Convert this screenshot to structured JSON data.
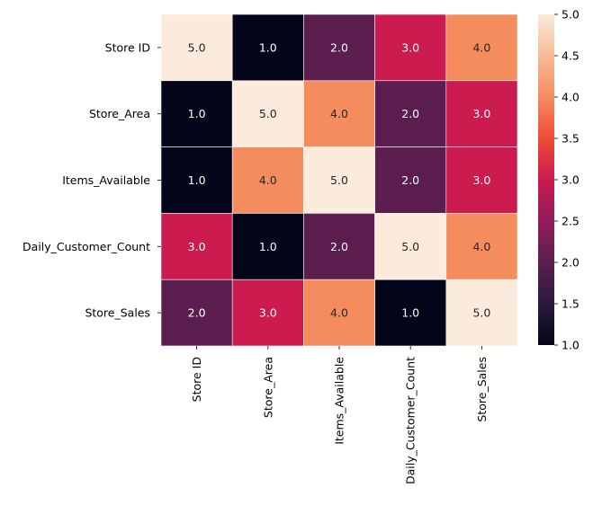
{
  "chart_data": {
    "type": "heatmap",
    "row_labels": [
      "Store ID ",
      "Store_Area",
      "Items_Available",
      "Daily_Customer_Count",
      "Store_Sales"
    ],
    "col_labels": [
      "Store ID ",
      "Store_Area",
      "Items_Available",
      "Daily_Customer_Count",
      "Store_Sales"
    ],
    "values": [
      [
        5.0,
        1.0,
        2.0,
        3.0,
        4.0
      ],
      [
        1.0,
        5.0,
        4.0,
        2.0,
        3.0
      ],
      [
        1.0,
        4.0,
        5.0,
        2.0,
        3.0
      ],
      [
        3.0,
        1.0,
        2.0,
        5.0,
        4.0
      ],
      [
        2.0,
        3.0,
        4.0,
        1.0,
        5.0
      ]
    ],
    "annotations": [
      [
        "5.0",
        "1.0",
        "2.0",
        "3.0",
        "4.0"
      ],
      [
        "1.0",
        "5.0",
        "4.0",
        "2.0",
        "3.0"
      ],
      [
        "1.0",
        "4.0",
        "5.0",
        "2.0",
        "3.0"
      ],
      [
        "3.0",
        "1.0",
        "2.0",
        "5.0",
        "4.0"
      ],
      [
        "2.0",
        "3.0",
        "4.0",
        "1.0",
        "5.0"
      ]
    ],
    "vmin": 1.0,
    "vmax": 5.0,
    "colormap": "rocket",
    "colorbar_ticks": [
      "1.0",
      "1.5",
      "2.0",
      "2.5",
      "3.0",
      "3.5",
      "4.0",
      "4.5",
      "5.0"
    ],
    "cell_colors": {
      "1.0": "#03051a",
      "2.0": "#5c1e4f",
      "3.0": "#cb1b4f",
      "4.0": "#f58c5e",
      "5.0": "#faebdd"
    },
    "colorbar_stops": [
      "#03051a",
      "#2b1a3e",
      "#5c1e4f",
      "#921c5b",
      "#cb1b4f",
      "#ef4c3a",
      "#f58c5e",
      "#f6bb97",
      "#faebdd"
    ],
    "title": "",
    "xlabel": "",
    "ylabel": ""
  }
}
